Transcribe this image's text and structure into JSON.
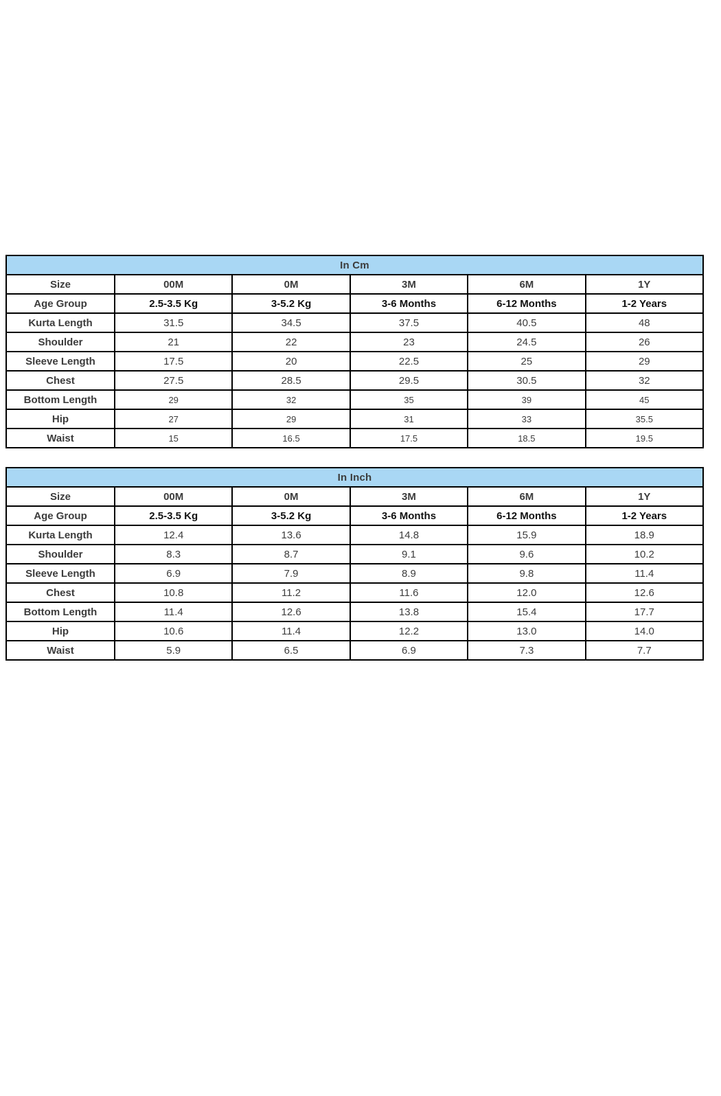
{
  "page": {
    "background": "#FFFFFF"
  },
  "colors": {
    "table_header_bg": "#A9D7F4",
    "table_header_text": "#101828",
    "table_border": "#000000",
    "row_label_text": "#111111",
    "value_text": "#3C3C3C"
  },
  "chart_data": [
    {
      "type": "table",
      "title": "In Cm",
      "columns": [
        "Size",
        "00M",
        "0M",
        "3M",
        "6M",
        "1Y"
      ],
      "rows": [
        {
          "label": "Age Group",
          "values": [
            "2.5-3.5 Kg",
            "3-5.2 Kg",
            "3-6 Months",
            "6-12 Months",
            "1-2 Years"
          ]
        },
        {
          "label": "Kurta Length",
          "values": [
            "31.5",
            "34.5",
            "37.5",
            "40.5",
            "48"
          ]
        },
        {
          "label": "Shoulder",
          "values": [
            "21",
            "22",
            "23",
            "24.5",
            "26"
          ]
        },
        {
          "label": "Sleeve Length",
          "values": [
            "17.5",
            "20",
            "22.5",
            "25",
            "29"
          ]
        },
        {
          "label": "Chest",
          "values": [
            "27.5",
            "28.5",
            "29.5",
            "30.5",
            "32"
          ]
        },
        {
          "label": "Bottom Length",
          "values": [
            "29",
            "32",
            "35",
            "39",
            "45"
          ]
        },
        {
          "label": "Hip",
          "values": [
            "27",
            "29",
            "31",
            "33",
            "35.5"
          ]
        },
        {
          "label": "Waist",
          "values": [
            "15",
            "16.5",
            "17.5",
            "18.5",
            "19.5"
          ]
        }
      ]
    },
    {
      "type": "table",
      "title": "In Inch",
      "columns": [
        "Size",
        "00M",
        "0M",
        "3M",
        "6M",
        "1Y"
      ],
      "rows": [
        {
          "label": "Age Group",
          "values": [
            "2.5-3.5 Kg",
            "3-5.2 Kg",
            "3-6 Months",
            "6-12 Months",
            "1-2 Years"
          ]
        },
        {
          "label": "Kurta Length",
          "values": [
            "12.4",
            "13.6",
            "14.8",
            "15.9",
            "18.9"
          ]
        },
        {
          "label": "Shoulder",
          "values": [
            "8.3",
            "8.7",
            "9.1",
            "9.6",
            "10.2"
          ]
        },
        {
          "label": "Sleeve Length",
          "values": [
            "6.9",
            "7.9",
            "8.9",
            "9.8",
            "11.4"
          ]
        },
        {
          "label": "Chest",
          "values": [
            "10.8",
            "11.2",
            "11.6",
            "12.0",
            "12.6"
          ]
        },
        {
          "label": "Bottom Length",
          "values": [
            "11.4",
            "12.6",
            "13.8",
            "15.4",
            "17.7"
          ]
        },
        {
          "label": "Hip",
          "values": [
            "10.6",
            "11.4",
            "12.2",
            "13.0",
            "14.0"
          ]
        },
        {
          "label": "Waist",
          "values": [
            "5.9",
            "6.5",
            "6.9",
            "7.3",
            "7.7"
          ]
        }
      ]
    }
  ]
}
